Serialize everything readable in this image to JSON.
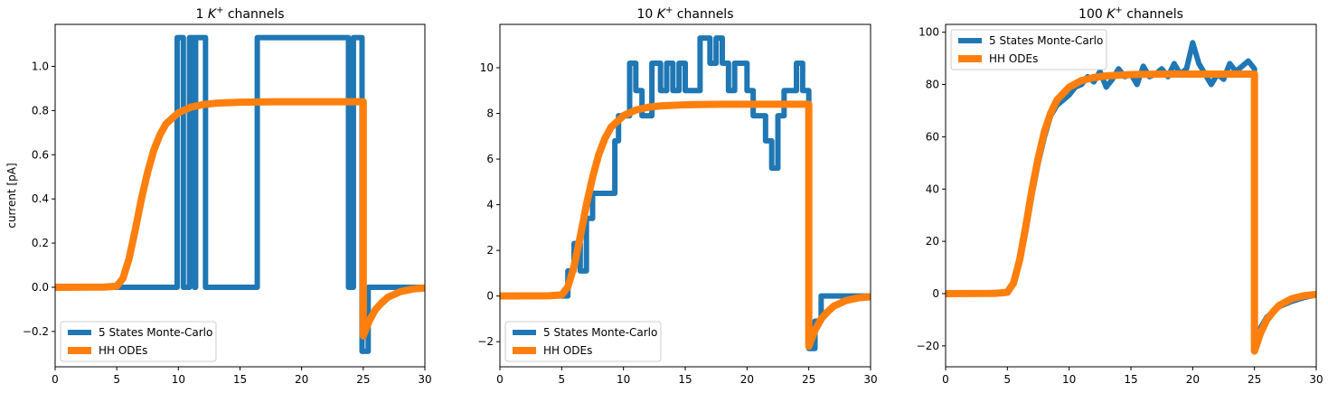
{
  "colors": {
    "mc": "#1f77b4",
    "hh": "#ff7f0e"
  },
  "chart_data": [
    {
      "type": "line",
      "title_prefix": "1",
      "title_sup": "+",
      "title_suffix": "channels",
      "xlabel": "",
      "ylabel": "current [pA]",
      "xlim": [
        0,
        30
      ],
      "ylim": [
        -0.36,
        1.19
      ],
      "xticks": [
        0,
        5,
        10,
        15,
        20,
        25,
        30
      ],
      "yticks": [
        -0.2,
        0.0,
        0.2,
        0.4,
        0.6,
        0.8,
        1.0
      ],
      "ytick_labels": [
        "−0.2",
        "0.0",
        "0.2",
        "0.4",
        "0.6",
        "0.8",
        "1.0"
      ],
      "legend_position": "lower left",
      "series": [
        {
          "name": "5 States Monte-Carlo",
          "color": "#1f77b4",
          "step": true,
          "x": [
            0,
            9.9,
            10.4,
            10.9,
            11.3,
            11.4,
            12.2,
            16.4,
            23.8,
            24.2,
            24.9,
            25.4,
            30
          ],
          "y": [
            0,
            1.13,
            0,
            1.13,
            0,
            1.13,
            0,
            1.13,
            0,
            1.13,
            -0.29,
            0,
            0
          ]
        },
        {
          "name": "HH ODEs",
          "color": "#ff7f0e",
          "step": false,
          "x": [
            0,
            4,
            5,
            5.5,
            6,
            6.5,
            7,
            7.5,
            8,
            8.5,
            9,
            10,
            11,
            12,
            13,
            15,
            18,
            25,
            25,
            25.5,
            26,
            26.5,
            27,
            28,
            29,
            30
          ],
          "y": [
            0,
            0.001,
            0.005,
            0.04,
            0.13,
            0.26,
            0.4,
            0.52,
            0.62,
            0.69,
            0.74,
            0.79,
            0.815,
            0.827,
            0.833,
            0.838,
            0.84,
            0.84,
            -0.22,
            -0.15,
            -0.1,
            -0.07,
            -0.045,
            -0.02,
            -0.008,
            -0.003
          ]
        }
      ]
    },
    {
      "type": "line",
      "title_prefix": "10",
      "title_sup": "+",
      "title_suffix": "channels",
      "xlabel": "",
      "ylabel": "",
      "xlim": [
        0,
        30
      ],
      "ylim": [
        -3.1,
        11.9
      ],
      "xticks": [
        0,
        5,
        10,
        15,
        20,
        25,
        30
      ],
      "yticks": [
        -2,
        0,
        2,
        4,
        6,
        8,
        10
      ],
      "ytick_labels": [
        "−2",
        "0",
        "2",
        "4",
        "6",
        "8",
        "10"
      ],
      "legend_position": "lower left",
      "series": [
        {
          "name": "5 States Monte-Carlo",
          "color": "#1f77b4",
          "step": true,
          "x": [
            0,
            5.5,
            6.0,
            6.5,
            7.0,
            7.5,
            9.3,
            9.6,
            10.0,
            10.5,
            11.0,
            11.5,
            12.3,
            13.0,
            13.5,
            14.0,
            14.5,
            15.0,
            16.2,
            17.0,
            17.5,
            18.0,
            18.5,
            19.0,
            20.0,
            20.5,
            21.5,
            22.0,
            22.5,
            23.0,
            24.0,
            24.5,
            25.0,
            25.5,
            26.0,
            27.0,
            30
          ],
          "y": [
            0,
            1.1,
            2.3,
            1.1,
            3.4,
            4.5,
            6.8,
            7.9,
            7.9,
            10.2,
            9.0,
            7.9,
            10.2,
            9.0,
            10.2,
            9.0,
            10.2,
            9.0,
            11.3,
            10.2,
            11.3,
            10.2,
            9.0,
            10.2,
            9.0,
            7.9,
            6.8,
            5.6,
            7.9,
            9.0,
            10.2,
            9.0,
            -2.3,
            -1.1,
            0,
            0,
            0
          ]
        },
        {
          "name": "HH ODEs",
          "color": "#ff7f0e",
          "step": false,
          "x": [
            0,
            4,
            5,
            5.5,
            6,
            6.5,
            7,
            7.5,
            8,
            8.5,
            9,
            10,
            11,
            12,
            13,
            15,
            18,
            25,
            25,
            25.5,
            26,
            26.5,
            27,
            28,
            29,
            30
          ],
          "y": [
            0,
            0.01,
            0.05,
            0.4,
            1.3,
            2.6,
            4.0,
            5.2,
            6.2,
            6.9,
            7.4,
            7.9,
            8.15,
            8.27,
            8.33,
            8.38,
            8.4,
            8.4,
            -2.2,
            -1.5,
            -1.0,
            -0.7,
            -0.45,
            -0.2,
            -0.08,
            -0.03
          ]
        }
      ]
    },
    {
      "type": "line",
      "title_prefix": "100",
      "title_sup": "+",
      "title_suffix": "channels",
      "xlabel": "",
      "ylabel": "",
      "xlim": [
        0,
        30
      ],
      "ylim": [
        -28,
        103
      ],
      "xticks": [
        0,
        5,
        10,
        15,
        20,
        25,
        30
      ],
      "yticks": [
        -20,
        0,
        20,
        40,
        60,
        80,
        100
      ],
      "ytick_labels": [
        "−20",
        "0",
        "20",
        "40",
        "60",
        "80",
        "100"
      ],
      "legend_position": "upper left",
      "series": [
        {
          "name": "5 States Monte-Carlo",
          "color": "#1f77b4",
          "step": false,
          "x": [
            0,
            5,
            5.5,
            6,
            6.5,
            7,
            7.5,
            8,
            8.5,
            9,
            9.5,
            10,
            10.5,
            11,
            11.5,
            12,
            12.5,
            13,
            13.5,
            14,
            14.5,
            15,
            15.5,
            16,
            16.5,
            17,
            17.5,
            18,
            18.5,
            19,
            19.5,
            20,
            20.5,
            21,
            21.5,
            22,
            22.5,
            23,
            23.5,
            24,
            24.5,
            25,
            25,
            25.5,
            26,
            27,
            28,
            29,
            30
          ],
          "y": [
            0,
            0.5,
            4,
            12,
            24,
            38,
            50,
            60,
            68,
            72,
            74,
            76,
            79,
            80,
            83,
            81,
            85,
            79,
            82,
            86,
            83,
            84,
            80,
            87,
            83,
            84,
            86,
            83,
            88,
            84,
            86,
            96,
            88,
            84,
            80,
            84,
            82,
            88,
            85,
            87,
            89,
            86,
            -21,
            -13,
            -9,
            -5,
            -3,
            -1.5,
            -0.5
          ]
        },
        {
          "name": "HH ODEs",
          "color": "#ff7f0e",
          "step": false,
          "x": [
            0,
            4,
            5,
            5.5,
            6,
            6.5,
            7,
            7.5,
            8,
            8.5,
            9,
            10,
            11,
            12,
            13,
            15,
            18,
            25,
            25,
            25.5,
            26,
            26.5,
            27,
            28,
            29,
            30
          ],
          "y": [
            0,
            0.1,
            0.5,
            4,
            13,
            26,
            40,
            52,
            62,
            69,
            74,
            79,
            81.5,
            82.7,
            83.3,
            83.8,
            84,
            84,
            -22,
            -15,
            -10,
            -7,
            -4.5,
            -2,
            -0.8,
            -0.3
          ]
        }
      ]
    }
  ]
}
